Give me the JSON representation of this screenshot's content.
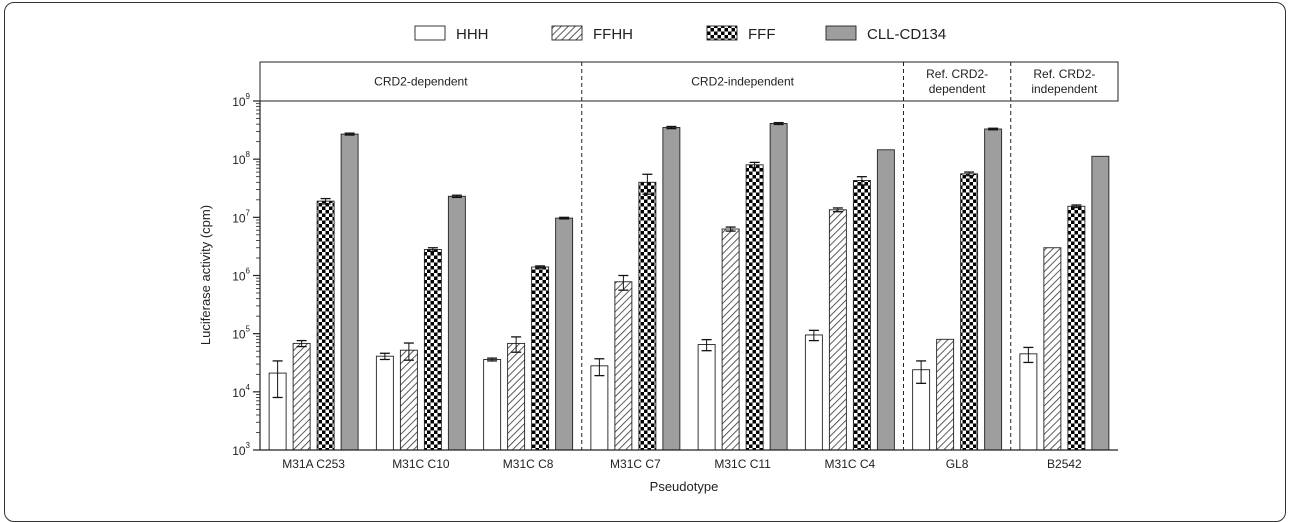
{
  "chart_data": {
    "type": "bar",
    "yscale": "log",
    "ylim": [
      1000,
      1000000000
    ],
    "yticks": [
      {
        "base": "10",
        "exp": "3"
      },
      {
        "base": "10",
        "exp": "4"
      },
      {
        "base": "10",
        "exp": "5"
      },
      {
        "base": "10",
        "exp": "6"
      },
      {
        "base": "10",
        "exp": "7"
      },
      {
        "base": "10",
        "exp": "8"
      },
      {
        "base": "10",
        "exp": "9"
      }
    ],
    "xlabel": "Pseudotype",
    "ylabel": "Luciferase activity (cpm)",
    "legend_position": "top",
    "categories": [
      "M31A C253",
      "M31C C10",
      "M31C C8",
      "M31C C7",
      "M31C C11",
      "M31C C4",
      "GL8",
      "B2542"
    ],
    "groups": [
      {
        "label_lines": [
          "CRD2-dependent"
        ],
        "start": 0,
        "end": 2
      },
      {
        "label_lines": [
          "CRD2-independent"
        ],
        "start": 3,
        "end": 5
      },
      {
        "label_lines": [
          "Ref. CRD2-",
          "dependent"
        ],
        "start": 6,
        "end": 6
      },
      {
        "label_lines": [
          "Ref. CRD2-",
          "independent"
        ],
        "start": 7,
        "end": 7
      }
    ],
    "series": [
      {
        "name": "HHH",
        "fill": "#ffffff",
        "pattern": "none",
        "values": [
          21000,
          41000,
          36000,
          28000,
          65000,
          95000,
          24000,
          45000
        ],
        "errors": [
          13000,
          5000,
          2000,
          9000,
          14000,
          19000,
          10000,
          13000
        ]
      },
      {
        "name": "FFHH",
        "fill": "#ffffff",
        "pattern": "hatch",
        "values": [
          68000,
          52000,
          68000,
          780000,
          6300000,
          13500000,
          80000,
          3000000
        ],
        "errors": [
          8000,
          17000,
          20000,
          220000,
          500000,
          1000000,
          0,
          0
        ]
      },
      {
        "name": "FFF",
        "fill": "#000000",
        "pattern": "checker",
        "values": [
          19000000,
          2800000,
          1400000,
          40000000,
          80000000,
          43000000,
          56000000,
          15500000
        ],
        "errors": [
          2000000,
          200000,
          60000,
          15000000,
          8000000,
          7000000,
          4000000,
          800000
        ]
      },
      {
        "name": "CLL-CD134",
        "fill": "#9e9e9e",
        "pattern": "none",
        "values": [
          270000000,
          23000000,
          9700000,
          350000000,
          410000000,
          145000000,
          330000000,
          112000000
        ],
        "errors": [
          10000000,
          1000000,
          300000,
          15000000,
          15000000,
          0,
          10000000,
          0
        ]
      }
    ]
  }
}
